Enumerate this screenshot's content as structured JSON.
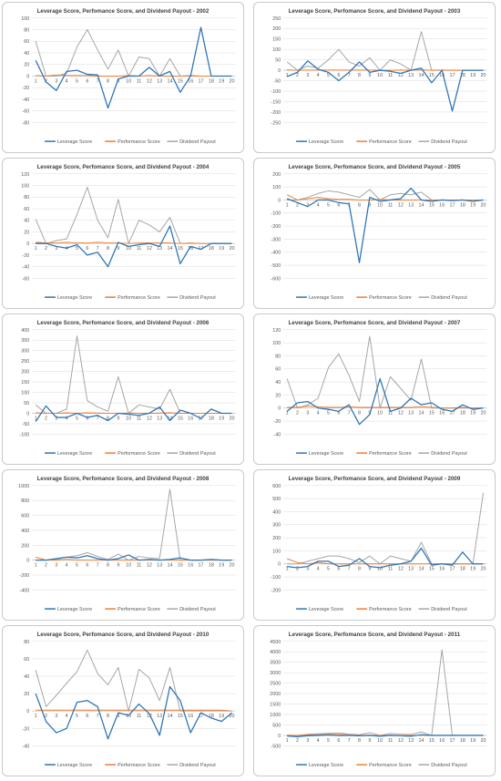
{
  "colors": {
    "leverage": "#2e75b6",
    "performance": "#ed7d31",
    "dividend": "#a5a5a5"
  },
  "chart_data": [
    {
      "type": "line",
      "title": "Leverage Score, Perfomance Score, and Dividend Payout - 2002",
      "x": [
        1,
        2,
        3,
        4,
        5,
        6,
        7,
        8,
        9,
        10,
        11,
        12,
        13,
        14,
        15,
        16,
        17,
        18,
        19,
        20
      ],
      "ylim": [
        -80,
        100
      ],
      "yticks": [
        -80,
        -60,
        -40,
        -20,
        0,
        20,
        40,
        60,
        80,
        100
      ],
      "legend": "bottom",
      "series": [
        {
          "name": "Leverage Score",
          "color": "#2e75b6",
          "values": [
            27,
            -10,
            -25,
            8,
            10,
            3,
            2,
            -55,
            -5,
            0,
            0,
            15,
            0,
            8,
            -28,
            0,
            84,
            0,
            0,
            0
          ]
        },
        {
          "name": "Performance Score",
          "color": "#ed7d31",
          "values": [
            1,
            0,
            2,
            1,
            1,
            1,
            0,
            0,
            0,
            1,
            0,
            1,
            0,
            0,
            0,
            1,
            0,
            0,
            0,
            0
          ]
        },
        {
          "name": "Dividend Payout",
          "color": "#a5a5a5",
          "values": [
            60,
            0,
            0,
            5,
            50,
            80,
            45,
            12,
            45,
            0,
            33,
            30,
            0,
            30,
            0,
            0,
            0,
            0,
            0,
            0
          ]
        }
      ]
    },
    {
      "type": "line",
      "title": "Leverage Score, Perfomance Score, and Dividend Payout - 2003",
      "x": [
        1,
        2,
        3,
        4,
        5,
        6,
        7,
        8,
        9,
        10,
        11,
        12,
        13,
        14,
        15,
        16,
        17,
        18,
        19,
        20
      ],
      "ylim": [
        -250,
        250
      ],
      "yticks": [
        -250,
        -200,
        -150,
        -100,
        -50,
        0,
        50,
        100,
        150,
        200,
        250
      ],
      "legend": "bottom",
      "series": [
        {
          "name": "Leverage Score",
          "color": "#2e75b6",
          "values": [
            -30,
            -10,
            45,
            5,
            -10,
            -50,
            -10,
            40,
            -10,
            0,
            -5,
            -15,
            0,
            10,
            -60,
            0,
            -195,
            0,
            0,
            0
          ]
        },
        {
          "name": "Performance Score",
          "color": "#ed7d31",
          "values": [
            2,
            0,
            1,
            1,
            1,
            1,
            1,
            1,
            1,
            0,
            0,
            1,
            0,
            2,
            0,
            1,
            0,
            0,
            0,
            0
          ]
        },
        {
          "name": "Dividend Payout",
          "color": "#a5a5a5",
          "values": [
            40,
            0,
            20,
            10,
            50,
            100,
            40,
            20,
            60,
            0,
            50,
            30,
            0,
            185,
            0,
            0,
            0,
            0,
            0,
            0
          ]
        }
      ]
    },
    {
      "type": "line",
      "title": "Leverage Score, Perfomance Score, and Dividend Payout - 2004",
      "x": [
        1,
        2,
        3,
        4,
        5,
        6,
        7,
        8,
        9,
        10,
        11,
        12,
        13,
        14,
        15,
        16,
        17,
        18,
        19,
        20
      ],
      "ylim": [
        -60,
        120
      ],
      "yticks": [
        -60,
        -40,
        -20,
        0,
        20,
        40,
        60,
        80,
        100,
        120
      ],
      "legend": "bottom",
      "series": [
        {
          "name": "Leverage Score",
          "color": "#2e75b6",
          "values": [
            0,
            0,
            -5,
            -8,
            -2,
            -20,
            -15,
            -40,
            2,
            -5,
            -2,
            0,
            -5,
            30,
            -35,
            -5,
            -10,
            0,
            0,
            0
          ]
        },
        {
          "name": "Performance Score",
          "color": "#ed7d31",
          "values": [
            2,
            1,
            1,
            2,
            1,
            1,
            2,
            1,
            1,
            0,
            1,
            1,
            1,
            1,
            0,
            1,
            0,
            0,
            0,
            0
          ]
        },
        {
          "name": "Dividend Payout",
          "color": "#a5a5a5",
          "values": [
            42,
            0,
            5,
            8,
            50,
            97,
            40,
            10,
            76,
            0,
            40,
            32,
            20,
            45,
            0,
            0,
            0,
            0,
            0,
            0
          ]
        }
      ]
    },
    {
      "type": "line",
      "title": "Leverage Score, Perfomance Score, and Dividend Payout - 2005",
      "x": [
        1,
        2,
        3,
        4,
        5,
        6,
        7,
        8,
        9,
        10,
        11,
        12,
        13,
        14,
        15,
        16,
        17,
        18,
        19,
        20
      ],
      "ylim": [
        -600,
        200
      ],
      "yticks": [
        -600,
        -500,
        -400,
        -300,
        -200,
        -100,
        0,
        100,
        200
      ],
      "legend": "bottom",
      "series": [
        {
          "name": "Leverage Score",
          "color": "#2e75b6",
          "values": [
            10,
            -20,
            -50,
            0,
            0,
            -20,
            -30,
            -480,
            20,
            -10,
            0,
            10,
            90,
            0,
            -10,
            0,
            -5,
            0,
            -10,
            0
          ]
        },
        {
          "name": "Performance Score",
          "color": "#ed7d31",
          "values": [
            40,
            0,
            10,
            20,
            10,
            5,
            5,
            0,
            0,
            5,
            0,
            0,
            0,
            0,
            0,
            0,
            0,
            0,
            0,
            0
          ]
        },
        {
          "name": "Dividend Payout",
          "color": "#a5a5a5",
          "values": [
            0,
            0,
            20,
            50,
            70,
            60,
            40,
            20,
            80,
            0,
            40,
            50,
            40,
            60,
            0,
            0,
            0,
            0,
            0,
            0
          ]
        }
      ]
    },
    {
      "type": "line",
      "title": "Leverage Score, Perfomance Score, and Dividend Payout - 2006",
      "x": [
        1,
        2,
        3,
        4,
        5,
        6,
        7,
        8,
        9,
        10,
        11,
        12,
        13,
        14,
        15,
        16,
        17,
        18,
        19,
        20
      ],
      "ylim": [
        -100,
        400
      ],
      "yticks": [
        -100,
        -50,
        0,
        50,
        100,
        150,
        200,
        250,
        300,
        350,
        400
      ],
      "legend": "bottom",
      "series": [
        {
          "name": "Leverage Score",
          "color": "#2e75b6",
          "values": [
            -40,
            35,
            -20,
            -20,
            0,
            -20,
            -10,
            -35,
            0,
            -5,
            -10,
            0,
            30,
            -35,
            15,
            0,
            -25,
            20,
            0,
            0
          ]
        },
        {
          "name": "Performance Score",
          "color": "#ed7d31",
          "values": [
            2,
            0,
            0,
            2,
            0,
            2,
            1,
            0,
            0,
            1,
            0,
            0,
            1,
            2,
            0,
            0,
            0,
            0,
            0,
            0
          ]
        },
        {
          "name": "Dividend Payout",
          "color": "#a5a5a5",
          "values": [
            40,
            0,
            0,
            20,
            370,
            60,
            30,
            10,
            175,
            0,
            40,
            30,
            20,
            115,
            0,
            0,
            0,
            0,
            0,
            0
          ]
        }
      ]
    },
    {
      "type": "line",
      "title": "Leverage Score, Perfomance Score, and Dividend Payout - 2007",
      "x": [
        1,
        2,
        3,
        4,
        5,
        6,
        7,
        8,
        9,
        10,
        11,
        12,
        13,
        14,
        15,
        16,
        17,
        18,
        19,
        20
      ],
      "ylim": [
        -40,
        120
      ],
      "yticks": [
        -40,
        -20,
        0,
        20,
        40,
        60,
        80,
        100,
        120
      ],
      "legend": "bottom",
      "series": [
        {
          "name": "Leverage Score",
          "color": "#2e75b6",
          "values": [
            -5,
            8,
            10,
            0,
            -2,
            -5,
            5,
            -25,
            -10,
            45,
            -5,
            0,
            15,
            5,
            8,
            -2,
            -5,
            5,
            -2,
            0
          ]
        },
        {
          "name": "Performance Score",
          "color": "#ed7d31",
          "values": [
            1,
            1,
            3,
            2,
            1,
            1,
            2,
            1,
            1,
            1,
            1,
            1,
            1,
            2,
            1,
            0,
            0,
            1,
            0,
            0
          ]
        },
        {
          "name": "Dividend Payout",
          "color": "#a5a5a5",
          "values": [
            45,
            0,
            5,
            15,
            62,
            83,
            50,
            10,
            110,
            0,
            48,
            30,
            12,
            75,
            0,
            0,
            0,
            0,
            0,
            0
          ]
        }
      ]
    },
    {
      "type": "line",
      "title": "Leverage Score, Perfomance Score, and Dividend Payout - 2008",
      "x": [
        1,
        2,
        3,
        4,
        5,
        6,
        7,
        8,
        9,
        10,
        11,
        12,
        13,
        14,
        15,
        16,
        17,
        18,
        19,
        20
      ],
      "ylim": [
        -400,
        1000
      ],
      "yticks": [
        -400,
        -200,
        0,
        200,
        400,
        600,
        800,
        1000
      ],
      "legend": "bottom",
      "series": [
        {
          "name": "Leverage Score",
          "color": "#2e75b6",
          "values": [
            0,
            0,
            20,
            40,
            30,
            60,
            20,
            0,
            20,
            70,
            0,
            10,
            0,
            10,
            30,
            0,
            0,
            10,
            0,
            0
          ]
        },
        {
          "name": "Performance Score",
          "color": "#ed7d31",
          "values": [
            40,
            0,
            0,
            10,
            0,
            0,
            0,
            0,
            0,
            0,
            0,
            0,
            0,
            0,
            0,
            0,
            0,
            0,
            0,
            0
          ]
        },
        {
          "name": "Dividend Payout",
          "color": "#a5a5a5",
          "values": [
            0,
            0,
            10,
            40,
            60,
            100,
            50,
            10,
            80,
            0,
            50,
            30,
            20,
            950,
            0,
            0,
            0,
            0,
            0,
            0
          ]
        }
      ]
    },
    {
      "type": "line",
      "title": "Leverage Score, Perfomance Score, and Dividend Payout - 2009",
      "x": [
        1,
        2,
        3,
        4,
        5,
        6,
        7,
        8,
        9,
        10,
        11,
        12,
        13,
        14,
        15,
        16,
        17,
        18,
        19,
        20
      ],
      "ylim": [
        -200,
        600
      ],
      "yticks": [
        -200,
        -100,
        0,
        100,
        200,
        300,
        400,
        500,
        600
      ],
      "legend": "bottom",
      "series": [
        {
          "name": "Leverage Score",
          "color": "#2e75b6",
          "values": [
            -20,
            -30,
            -20,
            20,
            20,
            -20,
            -10,
            40,
            -20,
            -30,
            -10,
            0,
            20,
            120,
            -10,
            0,
            -10,
            90,
            0,
            0
          ]
        },
        {
          "name": "Performance Score",
          "color": "#ed7d31",
          "values": [
            40,
            10,
            0,
            10,
            0,
            0,
            0,
            0,
            0,
            0,
            0,
            0,
            0,
            0,
            0,
            0,
            0,
            0,
            0,
            0
          ]
        },
        {
          "name": "Dividend Payout",
          "color": "#a5a5a5",
          "values": [
            0,
            0,
            20,
            40,
            60,
            60,
            40,
            10,
            60,
            0,
            60,
            40,
            20,
            165,
            0,
            0,
            0,
            0,
            0,
            545
          ]
        }
      ]
    },
    {
      "type": "line",
      "title": "Leverage Score, Perfomance Score, and Dividend Payout - 2010",
      "x": [
        1,
        2,
        3,
        4,
        5,
        6,
        7,
        8,
        9,
        10,
        11,
        12,
        13,
        14,
        15,
        16,
        17,
        18,
        19,
        20
      ],
      "ylim": [
        -40,
        80
      ],
      "yticks": [
        -40,
        -20,
        0,
        20,
        40,
        60,
        80
      ],
      "legend": "bottom",
      "series": [
        {
          "name": "Leverage Score",
          "color": "#2e75b6",
          "values": [
            20,
            -12,
            -25,
            -20,
            10,
            12,
            5,
            -32,
            -2,
            -5,
            8,
            -3,
            -28,
            28,
            12,
            -25,
            -2,
            -8,
            -12,
            -2
          ]
        },
        {
          "name": "Performance Score",
          "color": "#ed7d31",
          "values": [
            1,
            1,
            1,
            1,
            1,
            1,
            1,
            1,
            1,
            1,
            1,
            1,
            1,
            1,
            1,
            1,
            1,
            1,
            1,
            0
          ]
        },
        {
          "name": "Dividend Payout",
          "color": "#a5a5a5",
          "values": [
            47,
            5,
            18,
            32,
            45,
            70,
            43,
            30,
            50,
            0,
            48,
            38,
            12,
            50,
            0,
            0,
            0,
            0,
            0,
            0
          ]
        }
      ]
    },
    {
      "type": "line",
      "title": "Leverage Score, Perfomance Score, and Dividend Payout - 2011",
      "x": [
        1,
        2,
        3,
        4,
        5,
        6,
        7,
        8,
        9,
        10,
        11,
        12,
        13,
        14,
        15,
        16,
        17,
        18,
        19,
        20
      ],
      "ylim": [
        -500,
        4500
      ],
      "yticks": [
        -500,
        0,
        500,
        1000,
        1500,
        2000,
        2500,
        3000,
        3500,
        4000,
        4500
      ],
      "legend": "bottom",
      "series": [
        {
          "name": "Leverage Score",
          "color": "#2e75b6",
          "values": [
            -30,
            -60,
            -20,
            0,
            20,
            -10,
            0,
            -20,
            0,
            -40,
            0,
            -20,
            -40,
            30,
            0,
            0,
            0,
            0,
            0,
            0
          ]
        },
        {
          "name": "Performance Score",
          "color": "#ed7d31",
          "values": [
            10,
            0,
            20,
            30,
            50,
            50,
            20,
            0,
            10,
            0,
            10,
            0,
            0,
            0,
            0,
            0,
            0,
            0,
            0,
            0
          ]
        },
        {
          "name": "Dividend Payout",
          "color": "#a5a5a5",
          "values": [
            0,
            0,
            50,
            80,
            100,
            120,
            60,
            30,
            130,
            0,
            90,
            60,
            40,
            160,
            0,
            4100,
            0,
            0,
            0,
            0
          ]
        }
      ]
    }
  ]
}
